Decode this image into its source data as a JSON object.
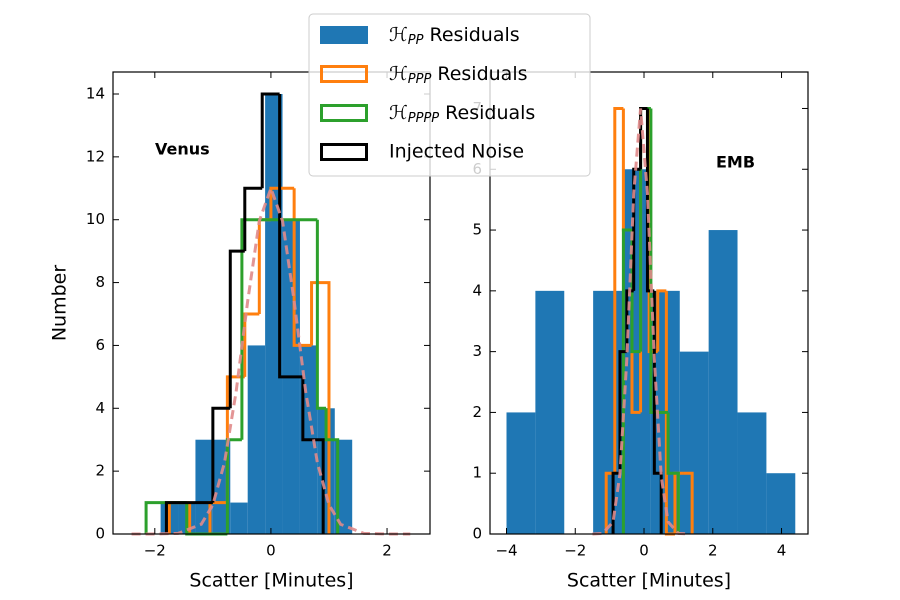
{
  "chart_data": [
    {
      "type": "histogram",
      "annotation": "Venus",
      "xlabel": "Scatter [Minutes]",
      "ylabel": "Number",
      "xlim": [
        -2.72,
        2.74
      ],
      "ylim": [
        0,
        14.7
      ],
      "xticks": [
        {
          "value": -2,
          "label": "−2"
        },
        0,
        2
      ],
      "yticks": [
        0,
        2,
        4,
        6,
        8,
        10,
        12,
        14
      ],
      "series": [
        {
          "name": "ℋPP Residuals",
          "color": "#1f77b4",
          "style": "filled",
          "bins": [
            -1.9,
            -1.6,
            -1.3,
            -1.0,
            -0.7,
            -0.4,
            -0.1,
            0.2,
            0.5,
            0.8,
            1.1,
            1.4
          ],
          "values": [
            1,
            1,
            3,
            3,
            1,
            6,
            14,
            10,
            6,
            4,
            3
          ]
        },
        {
          "name": "ℋPPP Residuals",
          "color": "#ff7f0e",
          "style": "step",
          "bins": [
            -1.75,
            -1.4,
            -1.05,
            -0.75,
            -0.45,
            -0.2,
            0.0,
            0.4,
            0.7,
            1.0
          ],
          "values": [
            1,
            0,
            1,
            5,
            7,
            10,
            11,
            6,
            8
          ]
        },
        {
          "name": "ℋPPPP Residuals",
          "color": "#2ca02c",
          "style": "step",
          "bins": [
            -2.15,
            -1.8,
            -1.45,
            -1.1,
            -0.75,
            -0.5,
            0.8,
            0.95,
            1.15
          ],
          "values": [
            1,
            1,
            0,
            0,
            3,
            10,
            4,
            3
          ]
        },
        {
          "name": "Injected Noise",
          "color": "#000000",
          "style": "step",
          "bins": [
            -1.8,
            -1.0,
            -0.7,
            -0.45,
            -0.15,
            0.15,
            0.55,
            0.9
          ],
          "values": [
            1,
            4,
            9,
            11,
            14,
            5,
            3
          ]
        },
        {
          "color": "#e08a8a",
          "style": "dashed-line",
          "x": [
            -2.4,
            -2.0,
            -1.6,
            -1.2,
            -1.0,
            -0.8,
            -0.6,
            -0.4,
            -0.2,
            0,
            0.2,
            0.4,
            0.6,
            0.8,
            1.0,
            1.2,
            1.6,
            2.0,
            2.4
          ],
          "values": [
            0,
            0,
            0.02,
            0.31,
            0.93,
            2.27,
            4.52,
            7.41,
            9.96,
            11,
            9.96,
            7.41,
            4.52,
            2.27,
            0.93,
            0.31,
            0.02,
            0,
            0
          ]
        }
      ]
    },
    {
      "type": "histogram",
      "annotation": "EMB",
      "xlabel": "Scatter [Minutes]",
      "xlim": [
        -4.48,
        4.77
      ],
      "ylim": [
        0,
        7.6
      ],
      "xticks": [
        {
          "value": -4,
          "label": "−4"
        },
        {
          "value": -2,
          "label": "−2"
        },
        0,
        2,
        4
      ],
      "yticks": [
        0,
        1,
        2,
        3,
        4,
        5,
        6,
        7
      ],
      "series": [
        {
          "color": "#1f77b4",
          "style": "filled",
          "bins": [
            -4,
            -3.16,
            -2.32,
            -1.48,
            -0.64,
            0.2,
            1.04,
            1.88,
            2.72,
            3.56,
            4.4
          ],
          "values": [
            2,
            4,
            0,
            4,
            6,
            4,
            3,
            5,
            2,
            1
          ]
        },
        {
          "color": "#ff7f0e",
          "style": "step",
          "bins": [
            -1.1,
            -0.85,
            -0.6,
            -0.35,
            -0.1,
            0.15,
            0.4,
            0.65,
            0.9,
            1.15,
            1.4
          ],
          "values": [
            1,
            7,
            5,
            2,
            7,
            3,
            4,
            0,
            1,
            1
          ]
        },
        {
          "color": "#2ca02c",
          "style": "step",
          "bins": [
            -0.6,
            -0.35,
            -0.1,
            0.2,
            0.45,
            0.7,
            1.0
          ],
          "values": [
            5,
            3,
            7,
            2,
            2,
            1
          ]
        },
        {
          "color": "#000000",
          "style": "step",
          "bins": [
            -0.9,
            -0.7,
            -0.5,
            -0.3,
            -0.1,
            0.1,
            0.3,
            0.5
          ],
          "values": [
            1,
            3,
            4,
            6,
            7,
            4,
            1
          ]
        },
        {
          "color": "#e08a8a",
          "style": "dashed-line",
          "x": [
            -1.5,
            -1.2,
            -0.9,
            -0.7,
            -0.5,
            -0.3,
            -0.1,
            0.1,
            0.3,
            0.5,
            0.7,
            1.0,
            1.3
          ],
          "values": [
            0,
            0.01,
            0.2,
            0.99,
            2.88,
            5.6,
            7,
            5.6,
            2.88,
            0.95,
            0.2,
            0.01,
            0
          ]
        }
      ]
    }
  ]
}
